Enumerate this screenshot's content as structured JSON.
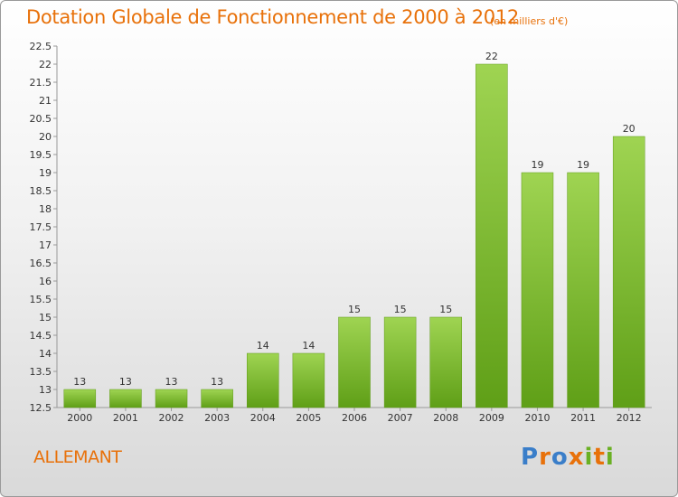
{
  "title": "Dotation Globale de Fonctionnement de 2000 à 2012",
  "unit_note": "(en milliers d'€)",
  "commune": "ALLEMANT",
  "logo": {
    "text": "Proxiti",
    "letter_colors": [
      "#3a7ec9",
      "#e8710a",
      "#3a7ec9",
      "#e8710a",
      "#6ab023",
      "#e8710a",
      "#6ab023"
    ]
  },
  "colors": {
    "title": "#e8710a",
    "bar_top": "#9fd452",
    "bar_bottom": "#5f9f17",
    "bar_edge": "#5f9a18",
    "axis": "#999999"
  },
  "chart_data": {
    "type": "bar",
    "title": "Dotation Globale de Fonctionnement de 2000 à 2012",
    "xlabel": "",
    "ylabel": "",
    "categories": [
      "2000",
      "2001",
      "2002",
      "2003",
      "2004",
      "2005",
      "2006",
      "2007",
      "2008",
      "2009",
      "2010",
      "2011",
      "2012"
    ],
    "values": [
      13,
      13,
      13,
      13,
      14,
      14,
      15,
      15,
      15,
      22,
      19,
      19,
      20
    ],
    "data_labels": [
      "13",
      "13",
      "13",
      "13",
      "14",
      "14",
      "15",
      "15",
      "15",
      "22",
      "19",
      "19",
      "20"
    ],
    "ylim": [
      12.5,
      22.5
    ],
    "yticks": [
      "12.5",
      "13",
      "13.5",
      "14",
      "14.5",
      "15",
      "15.5",
      "16",
      "16.5",
      "17",
      "17.5",
      "18",
      "18.5",
      "19",
      "19.5",
      "20",
      "20.5",
      "21",
      "21.5",
      "22",
      "22.5"
    ],
    "grid": false,
    "legend": "none"
  }
}
